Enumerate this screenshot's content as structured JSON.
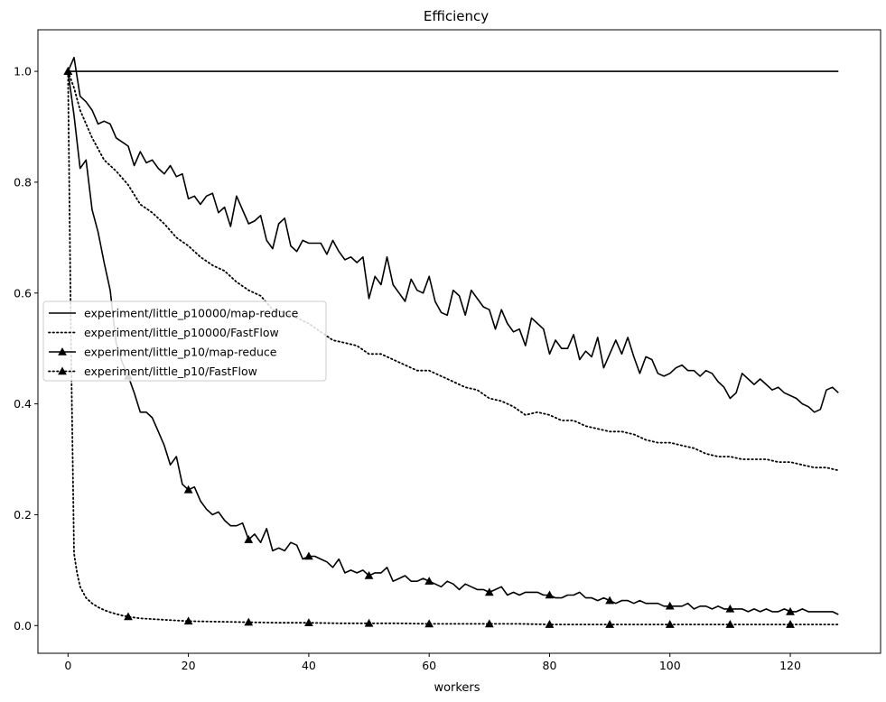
{
  "chart_data": {
    "type": "line",
    "title": "Efficiency",
    "xlabel": "workers",
    "ylabel": "",
    "xlim": [
      -5,
      135
    ],
    "ylim": [
      -0.05,
      1.075
    ],
    "xticks": [
      0,
      20,
      40,
      60,
      80,
      100,
      120
    ],
    "yticks": [
      0.0,
      0.2,
      0.4,
      0.6,
      0.8,
      1.0
    ],
    "grid": false,
    "legend_position": "center-left",
    "line_color": "#000000",
    "series": [
      {
        "name": "experiment/little_p10000/map-reduce",
        "style": "solid",
        "marker": "none",
        "x": [
          0,
          1,
          2,
          3,
          4,
          5,
          6,
          7,
          8,
          10,
          11,
          12,
          13,
          14,
          15,
          16,
          17,
          18,
          19,
          20,
          21,
          22,
          23,
          24,
          25,
          26,
          27,
          28,
          30,
          31,
          32,
          33,
          34,
          35,
          36,
          37,
          38,
          39,
          40,
          42,
          43,
          44,
          45,
          46,
          47,
          48,
          49,
          50,
          51,
          52,
          53,
          54,
          55,
          56,
          57,
          58,
          59,
          60,
          61,
          62,
          63,
          64,
          65,
          66,
          67,
          68,
          69,
          70,
          71,
          72,
          73,
          74,
          75,
          76,
          77,
          78,
          79,
          80,
          81,
          82,
          83,
          84,
          85,
          86,
          87,
          88,
          89,
          90,
          91,
          92,
          93,
          94,
          95,
          96,
          97,
          98,
          99,
          100,
          101,
          102,
          103,
          104,
          105,
          106,
          107,
          108,
          109,
          110,
          111,
          112,
          113,
          114,
          115,
          116,
          117,
          118,
          119,
          120,
          121,
          122,
          123,
          124,
          125,
          126,
          127,
          128
        ],
        "y": [
          1.0,
          1.025,
          0.955,
          0.945,
          0.93,
          0.905,
          0.91,
          0.905,
          0.88,
          0.865,
          0.83,
          0.855,
          0.835,
          0.84,
          0.825,
          0.815,
          0.83,
          0.81,
          0.815,
          0.77,
          0.775,
          0.76,
          0.775,
          0.78,
          0.745,
          0.755,
          0.72,
          0.775,
          0.725,
          0.73,
          0.74,
          0.695,
          0.68,
          0.725,
          0.735,
          0.685,
          0.675,
          0.695,
          0.69,
          0.69,
          0.67,
          0.695,
          0.675,
          0.66,
          0.665,
          0.655,
          0.665,
          0.59,
          0.63,
          0.615,
          0.665,
          0.615,
          0.6,
          0.585,
          0.625,
          0.605,
          0.6,
          0.63,
          0.585,
          0.565,
          0.56,
          0.605,
          0.595,
          0.56,
          0.605,
          0.59,
          0.575,
          0.57,
          0.535,
          0.57,
          0.545,
          0.53,
          0.535,
          0.505,
          0.555,
          0.545,
          0.535,
          0.49,
          0.515,
          0.5,
          0.5,
          0.525,
          0.48,
          0.495,
          0.485,
          0.52,
          0.465,
          0.49,
          0.515,
          0.49,
          0.52,
          0.485,
          0.455,
          0.485,
          0.48,
          0.455,
          0.45,
          0.455,
          0.465,
          0.47,
          0.46,
          0.46,
          0.45,
          0.46,
          0.455,
          0.44,
          0.43,
          0.41,
          0.42,
          0.455,
          0.445,
          0.435,
          0.445,
          0.435,
          0.425,
          0.43,
          0.42,
          0.415,
          0.41,
          0.4,
          0.395,
          0.385,
          0.39,
          0.425,
          0.43,
          0.42
        ]
      },
      {
        "name": "experiment/little_p10000/FastFlow",
        "style": "dotted",
        "marker": "none",
        "x": [
          0,
          1,
          2,
          4,
          6,
          8,
          10,
          12,
          14,
          16,
          18,
          20,
          22,
          24,
          26,
          28,
          30,
          32,
          34,
          36,
          38,
          40,
          42,
          44,
          46,
          48,
          50,
          52,
          54,
          56,
          58,
          60,
          62,
          64,
          66,
          68,
          70,
          72,
          74,
          76,
          78,
          80,
          82,
          84,
          86,
          88,
          90,
          92,
          94,
          96,
          98,
          100,
          102,
          104,
          106,
          108,
          110,
          112,
          114,
          116,
          118,
          120,
          122,
          124,
          126,
          128
        ],
        "y": [
          1.0,
          0.97,
          0.93,
          0.88,
          0.84,
          0.82,
          0.795,
          0.76,
          0.745,
          0.725,
          0.7,
          0.685,
          0.665,
          0.65,
          0.64,
          0.62,
          0.605,
          0.595,
          0.57,
          0.565,
          0.555,
          0.545,
          0.53,
          0.515,
          0.51,
          0.505,
          0.49,
          0.49,
          0.48,
          0.47,
          0.46,
          0.46,
          0.45,
          0.44,
          0.43,
          0.425,
          0.41,
          0.405,
          0.395,
          0.38,
          0.385,
          0.38,
          0.37,
          0.37,
          0.36,
          0.355,
          0.35,
          0.35,
          0.345,
          0.335,
          0.33,
          0.33,
          0.325,
          0.32,
          0.31,
          0.305,
          0.305,
          0.3,
          0.3,
          0.3,
          0.295,
          0.295,
          0.29,
          0.285,
          0.285,
          0.28
        ]
      },
      {
        "name": "experiment/little_p10/map-reduce",
        "style": "solid",
        "marker": "triangle",
        "marker_every": 10,
        "x": [
          0,
          1,
          2,
          3,
          4,
          5,
          6,
          7,
          8,
          9,
          10,
          11,
          12,
          13,
          14,
          15,
          16,
          17,
          18,
          19,
          20,
          21,
          22,
          23,
          24,
          25,
          26,
          27,
          28,
          29,
          30,
          31,
          32,
          33,
          34,
          35,
          36,
          37,
          38,
          39,
          40,
          41,
          42,
          43,
          44,
          45,
          46,
          47,
          48,
          49,
          50,
          51,
          52,
          53,
          54,
          55,
          56,
          57,
          58,
          59,
          60,
          61,
          62,
          63,
          64,
          65,
          66,
          67,
          68,
          69,
          70,
          71,
          72,
          73,
          74,
          75,
          76,
          77,
          78,
          79,
          80,
          81,
          82,
          83,
          84,
          85,
          86,
          87,
          88,
          89,
          90,
          91,
          92,
          93,
          94,
          95,
          96,
          97,
          98,
          99,
          100,
          101,
          102,
          103,
          104,
          105,
          106,
          107,
          108,
          109,
          110,
          111,
          112,
          113,
          114,
          115,
          116,
          117,
          118,
          119,
          120,
          121,
          122,
          123,
          124,
          125,
          126,
          127,
          128
        ],
        "y": [
          1.0,
          0.92,
          0.825,
          0.84,
          0.75,
          0.71,
          0.655,
          0.605,
          0.51,
          0.475,
          0.45,
          0.42,
          0.385,
          0.385,
          0.375,
          0.35,
          0.325,
          0.29,
          0.305,
          0.255,
          0.245,
          0.25,
          0.225,
          0.21,
          0.2,
          0.205,
          0.19,
          0.18,
          0.18,
          0.185,
          0.155,
          0.165,
          0.15,
          0.175,
          0.135,
          0.14,
          0.135,
          0.15,
          0.145,
          0.12,
          0.125,
          0.125,
          0.12,
          0.115,
          0.105,
          0.12,
          0.095,
          0.1,
          0.095,
          0.1,
          0.09,
          0.095,
          0.095,
          0.105,
          0.08,
          0.085,
          0.09,
          0.08,
          0.08,
          0.085,
          0.08,
          0.075,
          0.07,
          0.08,
          0.075,
          0.065,
          0.075,
          0.07,
          0.065,
          0.065,
          0.06,
          0.065,
          0.07,
          0.055,
          0.06,
          0.055,
          0.06,
          0.06,
          0.06,
          0.055,
          0.055,
          0.05,
          0.05,
          0.055,
          0.055,
          0.06,
          0.05,
          0.05,
          0.045,
          0.05,
          0.045,
          0.04,
          0.045,
          0.045,
          0.04,
          0.045,
          0.04,
          0.04,
          0.04,
          0.035,
          0.035,
          0.035,
          0.035,
          0.04,
          0.03,
          0.035,
          0.035,
          0.03,
          0.035,
          0.03,
          0.03,
          0.03,
          0.03,
          0.025,
          0.03,
          0.025,
          0.03,
          0.025,
          0.025,
          0.03,
          0.025,
          0.025,
          0.03,
          0.025,
          0.025,
          0.025,
          0.025,
          0.025,
          0.02
        ]
      },
      {
        "name": "experiment/little_p10/FastFlow",
        "style": "dotted",
        "marker": "triangle",
        "marker_every": 10,
        "x": [
          0,
          0.5,
          1,
          1.5,
          2,
          3,
          4,
          5,
          6,
          7,
          8,
          9,
          10,
          12,
          15,
          20,
          25,
          30,
          35,
          40,
          45,
          50,
          55,
          60,
          65,
          70,
          75,
          80,
          85,
          90,
          95,
          100,
          105,
          110,
          115,
          120,
          125,
          128
        ],
        "y": [
          1.0,
          0.5,
          0.13,
          0.095,
          0.07,
          0.05,
          0.04,
          0.033,
          0.028,
          0.024,
          0.021,
          0.018,
          0.016,
          0.013,
          0.011,
          0.008,
          0.007,
          0.006,
          0.005,
          0.005,
          0.004,
          0.004,
          0.004,
          0.003,
          0.003,
          0.003,
          0.003,
          0.002,
          0.002,
          0.002,
          0.002,
          0.002,
          0.002,
          0.002,
          0.002,
          0.002,
          0.002,
          0.002
        ]
      },
      {
        "name": "",
        "style": "solid",
        "marker": "none",
        "x": [
          0,
          128
        ],
        "y": [
          1.0,
          1.0
        ]
      }
    ]
  }
}
